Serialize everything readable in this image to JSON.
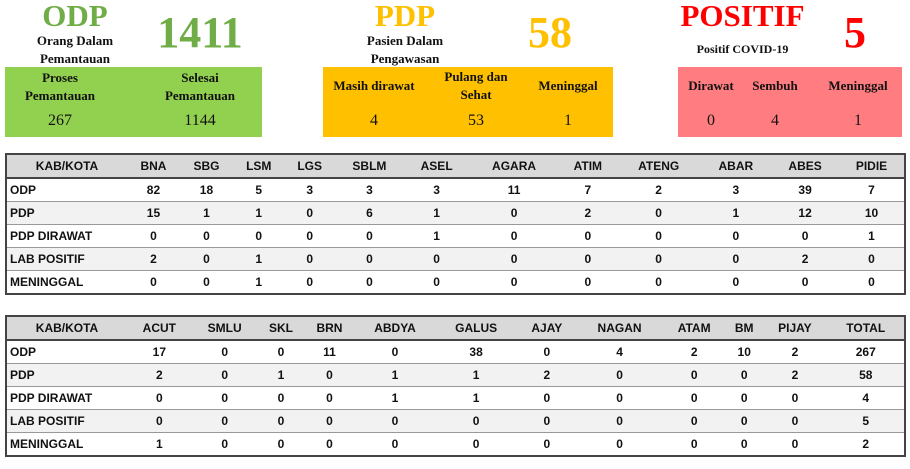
{
  "odp": {
    "title": "ODP",
    "subtitle_line1": "Orang Dalam",
    "subtitle_line2": "Pemantauan",
    "total": "1411",
    "color": "#70ad47",
    "box_color": "#92d050",
    "items": [
      {
        "label_line1": "Proses",
        "label_line2": "Pemantauan",
        "value": "267"
      },
      {
        "label_line1": "Selesai",
        "label_line2": "Pemantauan",
        "value": "1144"
      }
    ]
  },
  "pdp": {
    "title": "PDP",
    "subtitle_line1": "Pasien Dalam",
    "subtitle_line2": "Pengawasan",
    "total": "58",
    "color": "#ffc000",
    "box_color": "#ffc000",
    "items": [
      {
        "label_line1": "Masih dirawat",
        "label_line2": "",
        "value": "4"
      },
      {
        "label_line1": "Pulang dan",
        "label_line2": "Sehat",
        "value": "53"
      },
      {
        "label_line1": "Meninggal",
        "label_line2": "",
        "value": "1"
      }
    ]
  },
  "positif": {
    "title": "POSITIF",
    "subtitle_line1": "Positif COVID-19",
    "total": "5",
    "color": "#ff0000",
    "box_color": "#ff7c80",
    "items": [
      {
        "label_line1": "Dirawat",
        "value": "0"
      },
      {
        "label_line1": "Sembuh",
        "value": "4"
      },
      {
        "label_line1": "Meninggal",
        "value": "1"
      }
    ]
  },
  "tables": [
    {
      "headers": [
        "KAB/KOTA",
        "BNA",
        "SBG",
        "LSM",
        "LGS",
        "SBLM",
        "ASEL",
        "AGARA",
        "ATIM",
        "ATENG",
        "ABAR",
        "ABES",
        "PIDIE"
      ],
      "rows": [
        [
          "ODP",
          "82",
          "18",
          "5",
          "3",
          "3",
          "3",
          "11",
          "7",
          "2",
          "3",
          "39",
          "7"
        ],
        [
          "PDP",
          "15",
          "1",
          "1",
          "0",
          "6",
          "1",
          "0",
          "2",
          "0",
          "1",
          "12",
          "10"
        ],
        [
          "PDP DIRAWAT",
          "0",
          "0",
          "0",
          "0",
          "0",
          "1",
          "0",
          "0",
          "0",
          "0",
          "0",
          "1"
        ],
        [
          "LAB POSITIF",
          "2",
          "0",
          "1",
          "0",
          "0",
          "0",
          "0",
          "0",
          "0",
          "0",
          "2",
          "0"
        ],
        [
          "MENINGGAL",
          "0",
          "0",
          "1",
          "0",
          "0",
          "0",
          "0",
          "0",
          "0",
          "0",
          "0",
          "0"
        ]
      ]
    },
    {
      "headers": [
        "KAB/KOTA",
        "ACUT",
        "SMLU",
        "SKL",
        "BRN",
        "ABDYA",
        "GALUS",
        "AJAY",
        "NAGAN",
        "ATAM",
        "BM",
        "PIJAY",
        "TOTAL"
      ],
      "rows": [
        [
          "ODP",
          "17",
          "0",
          "0",
          "11",
          "0",
          "38",
          "0",
          "4",
          "2",
          "10",
          "2",
          "267"
        ],
        [
          "PDP",
          "2",
          "0",
          "1",
          "0",
          "1",
          "1",
          "2",
          "0",
          "0",
          "0",
          "2",
          "58"
        ],
        [
          "PDP DIRAWAT",
          "0",
          "0",
          "0",
          "0",
          "1",
          "1",
          "0",
          "0",
          "0",
          "0",
          "0",
          "4"
        ],
        [
          "LAB POSITIF",
          "0",
          "0",
          "0",
          "0",
          "0",
          "0",
          "0",
          "0",
          "0",
          "0",
          "0",
          "5"
        ],
        [
          "MENINGGAL",
          "1",
          "0",
          "0",
          "0",
          "0",
          "0",
          "0",
          "0",
          "0",
          "0",
          "0",
          "2"
        ]
      ]
    }
  ]
}
